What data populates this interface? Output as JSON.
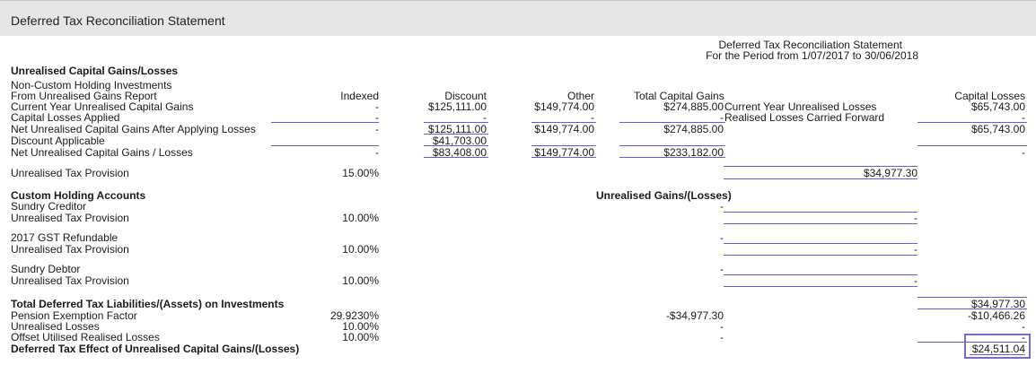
{
  "window": {
    "title": "Deferred Tax Reconciliation Statement"
  },
  "header": {
    "title": "Deferred Tax Reconciliation Statement",
    "period": "For the Period from 1/07/2017 to 30/06/2018"
  },
  "section1": {
    "heading": "Unrealised Capital Gains/Losses",
    "sub1": "Non-Custom Holding Investments",
    "sub2": "From Unrealised Gains Report",
    "columns": {
      "indexed": "Indexed",
      "discount": "Discount",
      "other": "Other",
      "total": "Total Capital Gains",
      "losses": "Capital Losses"
    },
    "mid_labels": {
      "cy_unrealised_losses": "Current Year Unrealised Losses",
      "realised_cf": "Realised Losses Carried Forward"
    },
    "rows": {
      "current_year": {
        "label": "Current Year Unrealised Capital Gains",
        "indexed": "-",
        "discount": "$125,111.00",
        "other": "$149,774.00",
        "total": "$274,885.00",
        "losses": "$65,743.00"
      },
      "losses_applied": {
        "label": "Capital Losses Applied",
        "indexed": "-",
        "discount": "-",
        "other": "-",
        "total": "-",
        "losses": "-"
      },
      "net_after_losses": {
        "label": "Net Unrealised Capital Gains After Applying Losses",
        "indexed": "-",
        "discount": "$125,111.00",
        "other": "$149,774.00",
        "total": "$274,885.00",
        "losses": "$65,743.00"
      },
      "discount_applicable": {
        "label": "Discount Applicable",
        "discount": "$41,703.00"
      },
      "net_gains": {
        "label": "Net Unrealised Capital Gains / Losses",
        "indexed": "-",
        "discount": "$83,408.00",
        "other": "$149,774.00",
        "total": "$233,182.00",
        "losses": "-"
      }
    },
    "provision": {
      "label": "Unrealised Tax Provision",
      "rate": "15.00%",
      "value": "$34,977.30"
    }
  },
  "section2": {
    "heading": "Custom Holding Accounts",
    "col_heading": "Unrealised Gains/(Losses)",
    "groups": [
      {
        "name": "Sundry Creditor",
        "gain": "-",
        "prov_label": "Unrealised Tax Provision",
        "rate": "10.00%",
        "value": "-"
      },
      {
        "name": "2017 GST Refundable",
        "gain": "-",
        "prov_label": "Unrealised Tax Provision",
        "rate": "10.00%",
        "value": "-"
      },
      {
        "name": "Sundry Debtor",
        "gain": "-",
        "prov_label": "Unrealised Tax Provision",
        "rate": "10.00%",
        "value": "-"
      }
    ]
  },
  "totals": {
    "total_liabilities": {
      "label": "Total Deferred Tax Liabilities/(Assets) on Investments",
      "value": "$34,977.30"
    },
    "pension": {
      "label": "Pension Exemption Factor",
      "rate": "29.9230%",
      "mid": "-$34,977.30",
      "value": "-$10,466.26"
    },
    "unrealised_losses": {
      "label": "Unrealised Losses",
      "rate": "10.00%",
      "mid": "-",
      "value": "-"
    },
    "offset": {
      "label": "Offset Utilised Realised Losses",
      "rate": "10.00%",
      "mid": "-",
      "value": "-"
    },
    "deferred_effect": {
      "label": "Deferred Tax Effect of Unrealised Capital Gains/(Losses)",
      "value": "$24,511.04"
    }
  },
  "colors": {
    "rule": "#6a5acd",
    "highlight_box": "#7b68c8",
    "titlebar_bg": "#e6e6e6"
  }
}
